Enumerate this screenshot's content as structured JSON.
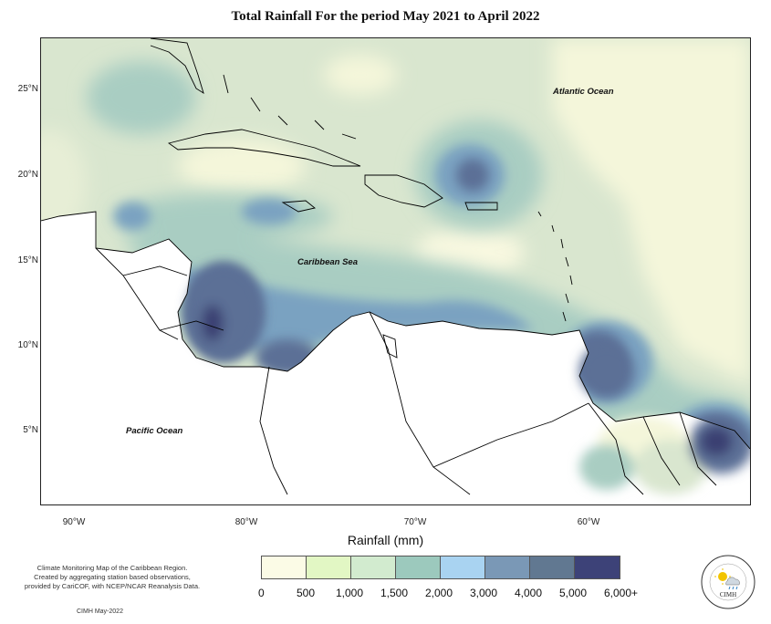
{
  "title": "Total Rainfall For the period May 2021 to April 2022",
  "axis_title": "Rainfall (mm)",
  "latitude_labels": [
    "25°N",
    "20°N",
    "15°N",
    "10°N",
    "5°N"
  ],
  "longitude_labels": [
    "90°W",
    "80°W",
    "70°W",
    "60°W"
  ],
  "ocean_labels": {
    "atlantic": "Atlantic Ocean",
    "caribbean": "Caribbean Sea",
    "pacific": "Pacific Ocean"
  },
  "legend": {
    "ticks": [
      "0",
      "500",
      "1,000",
      "1,500",
      "2,000",
      "3,000",
      "4,000",
      "5,000",
      "6,000+"
    ],
    "colors": [
      "#fbfbe6",
      "#e2f7c4",
      "#d2ebcf",
      "#9cc9bd",
      "#a9d3f1",
      "#7a98b6",
      "#617891",
      "#3d4278"
    ]
  },
  "footer": {
    "note_line1": "Climate Monitoring Map of the Caribbean Region.",
    "note_line2": "Created by aggregating station based observations,",
    "note_line3": "provided by CariCOF, with NCEP/NCAR Reanalysis Data.",
    "date": "CIMH May-2022"
  },
  "logo": {
    "text": "CIMH",
    "icon": "sun-cloud-rain-icon"
  }
}
